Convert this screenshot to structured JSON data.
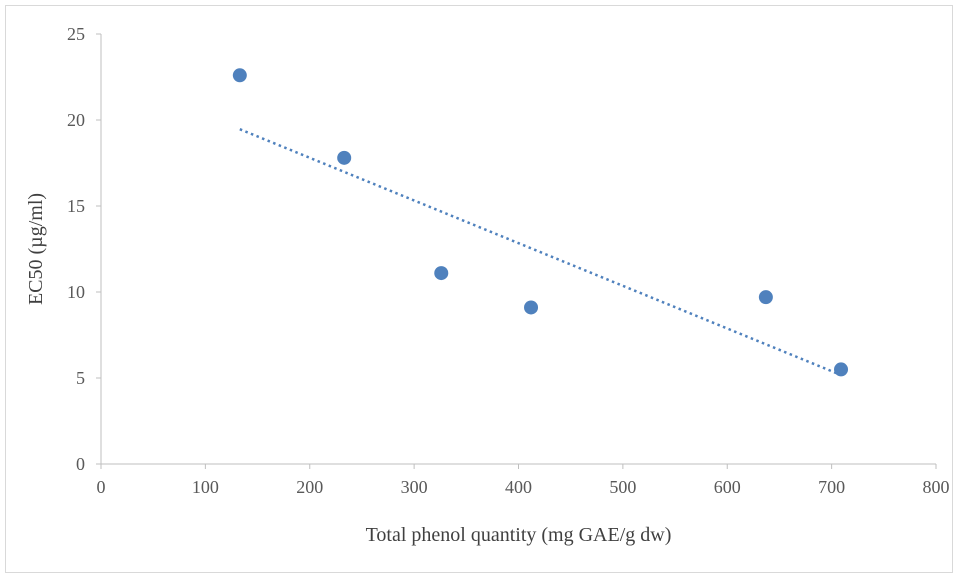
{
  "chart_data": {
    "type": "scatter",
    "title": "",
    "xlabel": "Total phenol quantity (mg GAE/g dw)",
    "ylabel": "EC50  (µg/ml)",
    "xlim": [
      0,
      800
    ],
    "ylim": [
      0,
      25
    ],
    "xticks": [
      "0",
      "100",
      "200",
      "300",
      "400",
      "500",
      "600",
      "700",
      "800"
    ],
    "yticks": [
      "0",
      "5",
      "10",
      "15",
      "20",
      "25"
    ],
    "grid": false,
    "legend": "none",
    "series": [
      {
        "points": [
          {
            "x": 133,
            "y": 22.6
          },
          {
            "x": 233,
            "y": 17.8
          },
          {
            "x": 326,
            "y": 11.1
          },
          {
            "x": 412,
            "y": 9.1
          },
          {
            "x": 637,
            "y": 9.7
          },
          {
            "x": 709,
            "y": 5.5
          }
        ],
        "color": "#4f81bd"
      }
    ],
    "trendline": {
      "type": "linear",
      "style": "dotted",
      "color": "#4f81bd",
      "x_range": [
        133,
        709
      ]
    }
  }
}
